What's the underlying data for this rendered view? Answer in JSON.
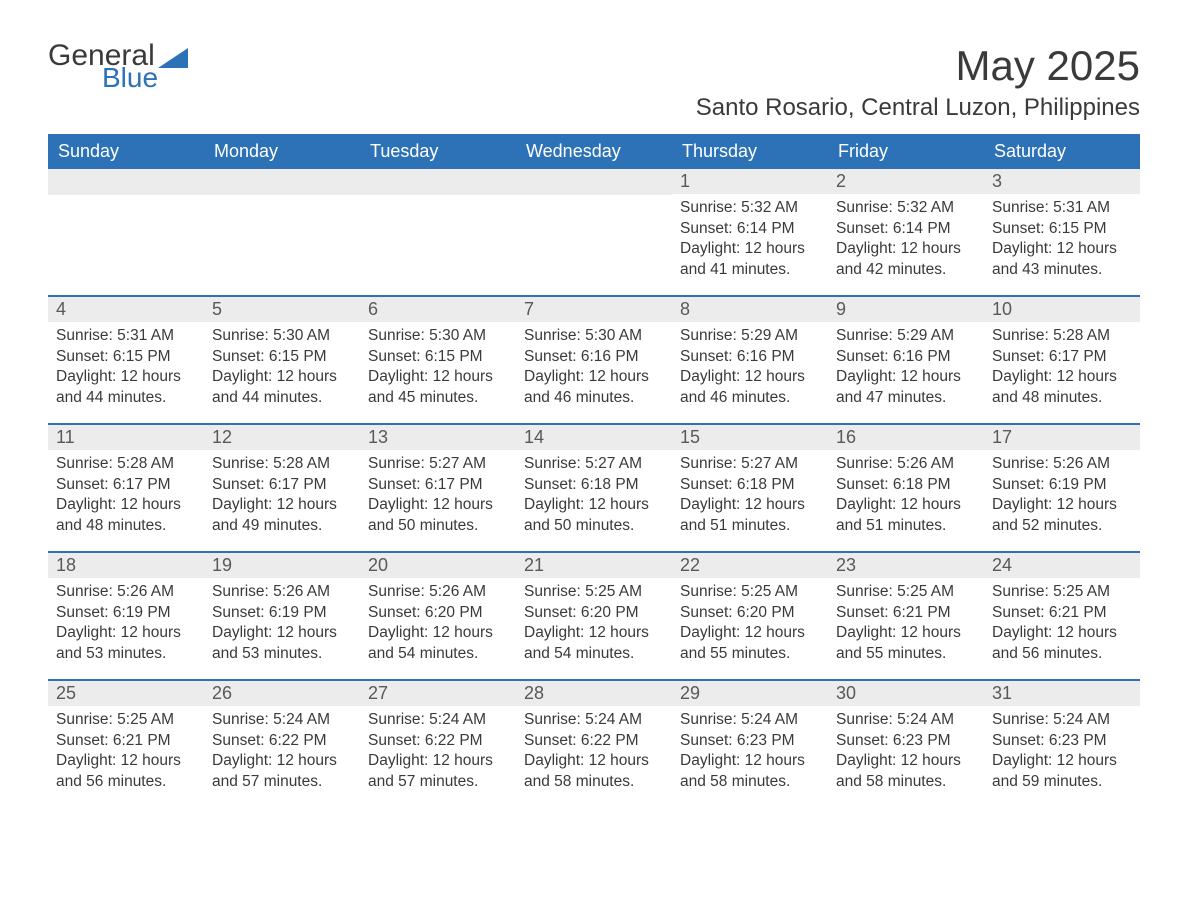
{
  "logo": {
    "general": "General",
    "blue": "Blue"
  },
  "title": "May 2025",
  "subtitle": "Santo Rosario, Central Luzon, Philippines",
  "colors": {
    "header_bg": "#2d72b6",
    "header_text": "#ffffff",
    "daynum_bg": "#ececec",
    "daynum_text": "#595959",
    "body_text": "#3a3a3a",
    "week_divider": "#2d72b6",
    "page_bg": "#ffffff",
    "logo_blue": "#2d72b6"
  },
  "layout": {
    "columns": 7,
    "rows": 5,
    "font_family": "Arial",
    "title_fontsize": 42,
    "subtitle_fontsize": 24,
    "header_fontsize": 18,
    "daynum_fontsize": 18,
    "body_fontsize": 15.5
  },
  "day_names": [
    "Sunday",
    "Monday",
    "Tuesday",
    "Wednesday",
    "Thursday",
    "Friday",
    "Saturday"
  ],
  "weeks": [
    [
      null,
      null,
      null,
      null,
      {
        "num": "1",
        "sunrise": "Sunrise: 5:32 AM",
        "sunset": "Sunset: 6:14 PM",
        "daylight": "Daylight: 12 hours and 41 minutes."
      },
      {
        "num": "2",
        "sunrise": "Sunrise: 5:32 AM",
        "sunset": "Sunset: 6:14 PM",
        "daylight": "Daylight: 12 hours and 42 minutes."
      },
      {
        "num": "3",
        "sunrise": "Sunrise: 5:31 AM",
        "sunset": "Sunset: 6:15 PM",
        "daylight": "Daylight: 12 hours and 43 minutes."
      }
    ],
    [
      {
        "num": "4",
        "sunrise": "Sunrise: 5:31 AM",
        "sunset": "Sunset: 6:15 PM",
        "daylight": "Daylight: 12 hours and 44 minutes."
      },
      {
        "num": "5",
        "sunrise": "Sunrise: 5:30 AM",
        "sunset": "Sunset: 6:15 PM",
        "daylight": "Daylight: 12 hours and 44 minutes."
      },
      {
        "num": "6",
        "sunrise": "Sunrise: 5:30 AM",
        "sunset": "Sunset: 6:15 PM",
        "daylight": "Daylight: 12 hours and 45 minutes."
      },
      {
        "num": "7",
        "sunrise": "Sunrise: 5:30 AM",
        "sunset": "Sunset: 6:16 PM",
        "daylight": "Daylight: 12 hours and 46 minutes."
      },
      {
        "num": "8",
        "sunrise": "Sunrise: 5:29 AM",
        "sunset": "Sunset: 6:16 PM",
        "daylight": "Daylight: 12 hours and 46 minutes."
      },
      {
        "num": "9",
        "sunrise": "Sunrise: 5:29 AM",
        "sunset": "Sunset: 6:16 PM",
        "daylight": "Daylight: 12 hours and 47 minutes."
      },
      {
        "num": "10",
        "sunrise": "Sunrise: 5:28 AM",
        "sunset": "Sunset: 6:17 PM",
        "daylight": "Daylight: 12 hours and 48 minutes."
      }
    ],
    [
      {
        "num": "11",
        "sunrise": "Sunrise: 5:28 AM",
        "sunset": "Sunset: 6:17 PM",
        "daylight": "Daylight: 12 hours and 48 minutes."
      },
      {
        "num": "12",
        "sunrise": "Sunrise: 5:28 AM",
        "sunset": "Sunset: 6:17 PM",
        "daylight": "Daylight: 12 hours and 49 minutes."
      },
      {
        "num": "13",
        "sunrise": "Sunrise: 5:27 AM",
        "sunset": "Sunset: 6:17 PM",
        "daylight": "Daylight: 12 hours and 50 minutes."
      },
      {
        "num": "14",
        "sunrise": "Sunrise: 5:27 AM",
        "sunset": "Sunset: 6:18 PM",
        "daylight": "Daylight: 12 hours and 50 minutes."
      },
      {
        "num": "15",
        "sunrise": "Sunrise: 5:27 AM",
        "sunset": "Sunset: 6:18 PM",
        "daylight": "Daylight: 12 hours and 51 minutes."
      },
      {
        "num": "16",
        "sunrise": "Sunrise: 5:26 AM",
        "sunset": "Sunset: 6:18 PM",
        "daylight": "Daylight: 12 hours and 51 minutes."
      },
      {
        "num": "17",
        "sunrise": "Sunrise: 5:26 AM",
        "sunset": "Sunset: 6:19 PM",
        "daylight": "Daylight: 12 hours and 52 minutes."
      }
    ],
    [
      {
        "num": "18",
        "sunrise": "Sunrise: 5:26 AM",
        "sunset": "Sunset: 6:19 PM",
        "daylight": "Daylight: 12 hours and 53 minutes."
      },
      {
        "num": "19",
        "sunrise": "Sunrise: 5:26 AM",
        "sunset": "Sunset: 6:19 PM",
        "daylight": "Daylight: 12 hours and 53 minutes."
      },
      {
        "num": "20",
        "sunrise": "Sunrise: 5:26 AM",
        "sunset": "Sunset: 6:20 PM",
        "daylight": "Daylight: 12 hours and 54 minutes."
      },
      {
        "num": "21",
        "sunrise": "Sunrise: 5:25 AM",
        "sunset": "Sunset: 6:20 PM",
        "daylight": "Daylight: 12 hours and 54 minutes."
      },
      {
        "num": "22",
        "sunrise": "Sunrise: 5:25 AM",
        "sunset": "Sunset: 6:20 PM",
        "daylight": "Daylight: 12 hours and 55 minutes."
      },
      {
        "num": "23",
        "sunrise": "Sunrise: 5:25 AM",
        "sunset": "Sunset: 6:21 PM",
        "daylight": "Daylight: 12 hours and 55 minutes."
      },
      {
        "num": "24",
        "sunrise": "Sunrise: 5:25 AM",
        "sunset": "Sunset: 6:21 PM",
        "daylight": "Daylight: 12 hours and 56 minutes."
      }
    ],
    [
      {
        "num": "25",
        "sunrise": "Sunrise: 5:25 AM",
        "sunset": "Sunset: 6:21 PM",
        "daylight": "Daylight: 12 hours and 56 minutes."
      },
      {
        "num": "26",
        "sunrise": "Sunrise: 5:24 AM",
        "sunset": "Sunset: 6:22 PM",
        "daylight": "Daylight: 12 hours and 57 minutes."
      },
      {
        "num": "27",
        "sunrise": "Sunrise: 5:24 AM",
        "sunset": "Sunset: 6:22 PM",
        "daylight": "Daylight: 12 hours and 57 minutes."
      },
      {
        "num": "28",
        "sunrise": "Sunrise: 5:24 AM",
        "sunset": "Sunset: 6:22 PM",
        "daylight": "Daylight: 12 hours and 58 minutes."
      },
      {
        "num": "29",
        "sunrise": "Sunrise: 5:24 AM",
        "sunset": "Sunset: 6:23 PM",
        "daylight": "Daylight: 12 hours and 58 minutes."
      },
      {
        "num": "30",
        "sunrise": "Sunrise: 5:24 AM",
        "sunset": "Sunset: 6:23 PM",
        "daylight": "Daylight: 12 hours and 58 minutes."
      },
      {
        "num": "31",
        "sunrise": "Sunrise: 5:24 AM",
        "sunset": "Sunset: 6:23 PM",
        "daylight": "Daylight: 12 hours and 59 minutes."
      }
    ]
  ]
}
